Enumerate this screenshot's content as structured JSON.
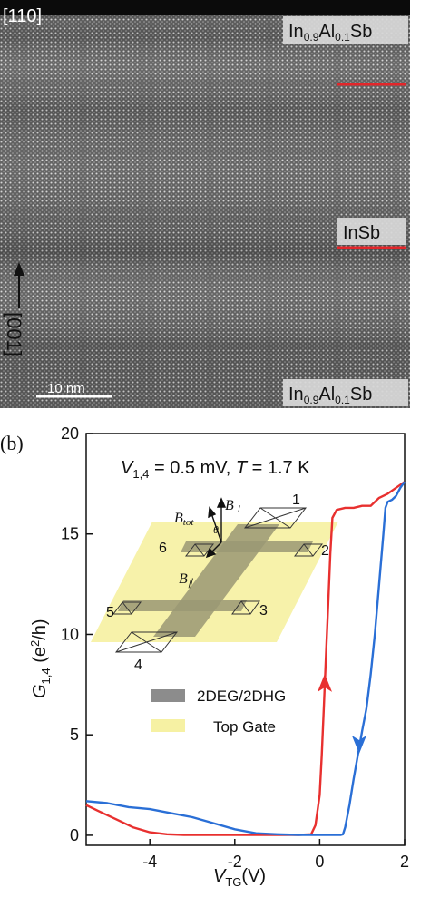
{
  "panel_a": {
    "corner_label": "[110]",
    "layers": [
      {
        "label": "In0.9Al0.1Sb",
        "main1": "In",
        "sub1": "0.9",
        "main2": "Al",
        "sub2": "0.1",
        "main3": "Sb"
      },
      {
        "label": "InSb"
      },
      {
        "label": "In0.9Al0.1Sb",
        "main1": "In",
        "sub1": "0.9",
        "main2": "Al",
        "sub2": "0.1",
        "main3": "Sb"
      }
    ],
    "direction_label": "[001]",
    "scale_bar_label": "10 nm",
    "colors": {
      "interface_line": "#e3262a",
      "background": "#6b6b6b"
    }
  },
  "panel_b": {
    "panel_label": "(b)",
    "annotation": {
      "v": "V",
      "v_sub": "1,4",
      "v_rest": " = 0.5 mV, ",
      "t": "T",
      "t_rest": " = 1.7 K"
    },
    "ylabel": {
      "main": "G",
      "sub": "1,4",
      "rest_before_sup": " (e",
      "sup": "2",
      "rest_after_sup": "/h)"
    },
    "xlabel": {
      "main": "V",
      "sub": "TG",
      "rest": "(V)"
    },
    "inset": {
      "contacts": [
        "1",
        "2",
        "3",
        "4",
        "5",
        "6"
      ],
      "b_perp": {
        "main": "B",
        "sub": "⊥"
      },
      "b_tot": {
        "main": "B",
        "sub": "tot"
      },
      "b_par": {
        "main": "B",
        "sub": "∥"
      },
      "theta": "θ"
    },
    "legend": [
      {
        "label": "2DEG/2DHG",
        "color": "#8c8c8c"
      },
      {
        "label": "Top Gate",
        "color": "#f6f1a3"
      }
    ],
    "colors": {
      "sweep_up": "#e8302f",
      "sweep_down": "#2a6fd6",
      "gate": "#f6f1a3",
      "channel": "#9a9874"
    }
  },
  "chart_data": {
    "type": "line",
    "xlabel": "V_TG(V)",
    "ylabel": "G_1,4 (e^2/h)",
    "xlim": [
      -5.5,
      2
    ],
    "ylim": [
      -0.5,
      20
    ],
    "xticks": [
      -4,
      -2,
      0,
      2
    ],
    "yticks": [
      0,
      5,
      10,
      15,
      20
    ],
    "xtick_labels": [
      "-4",
      "-2",
      "0",
      "2"
    ],
    "ytick_labels": [
      "0",
      "5",
      "10",
      "15",
      "20"
    ],
    "series": [
      {
        "color": "#e8302f",
        "direction": "up",
        "x": [
          -5.5,
          -5.2,
          -4.8,
          -4.4,
          -4.0,
          -3.6,
          -3.2,
          -2.8,
          -2.4,
          -2.0,
          -1.5,
          -1.0,
          -0.5,
          -0.2,
          -0.1,
          0.0,
          0.05,
          0.1,
          0.15,
          0.2,
          0.25,
          0.3,
          0.4,
          0.6,
          0.8,
          1.0,
          1.2,
          1.4,
          1.6,
          1.8,
          2.0
        ],
        "y": [
          1.5,
          1.2,
          0.8,
          0.4,
          0.15,
          0.05,
          0.02,
          0.02,
          0.02,
          0.02,
          0.02,
          0.02,
          0.02,
          0.05,
          0.5,
          2.0,
          4.0,
          6.5,
          9.0,
          11.5,
          14.0,
          15.8,
          16.2,
          16.3,
          16.3,
          16.4,
          16.4,
          16.8,
          17.0,
          17.3,
          17.6
        ]
      },
      {
        "color": "#2a6fd6",
        "direction": "down",
        "x": [
          2.0,
          1.9,
          1.8,
          1.7,
          1.6,
          1.55,
          1.5,
          1.4,
          1.3,
          1.2,
          1.1,
          1.0,
          0.9,
          0.8,
          0.7,
          0.6,
          0.55,
          0.5,
          0.3,
          0.0,
          -0.5,
          -1.0,
          -1.5,
          -2.0,
          -2.5,
          -3.0,
          -3.5,
          -4.0,
          -4.5,
          -5.0,
          -5.5
        ],
        "y": [
          17.6,
          17.3,
          16.9,
          16.7,
          16.6,
          16.3,
          15.0,
          12.5,
          10.0,
          8.0,
          6.3,
          5.2,
          4.0,
          2.8,
          1.5,
          0.4,
          0.05,
          0.02,
          0.02,
          0.02,
          0.02,
          0.05,
          0.1,
          0.3,
          0.6,
          0.9,
          1.1,
          1.3,
          1.4,
          1.6,
          1.7
        ]
      }
    ]
  }
}
